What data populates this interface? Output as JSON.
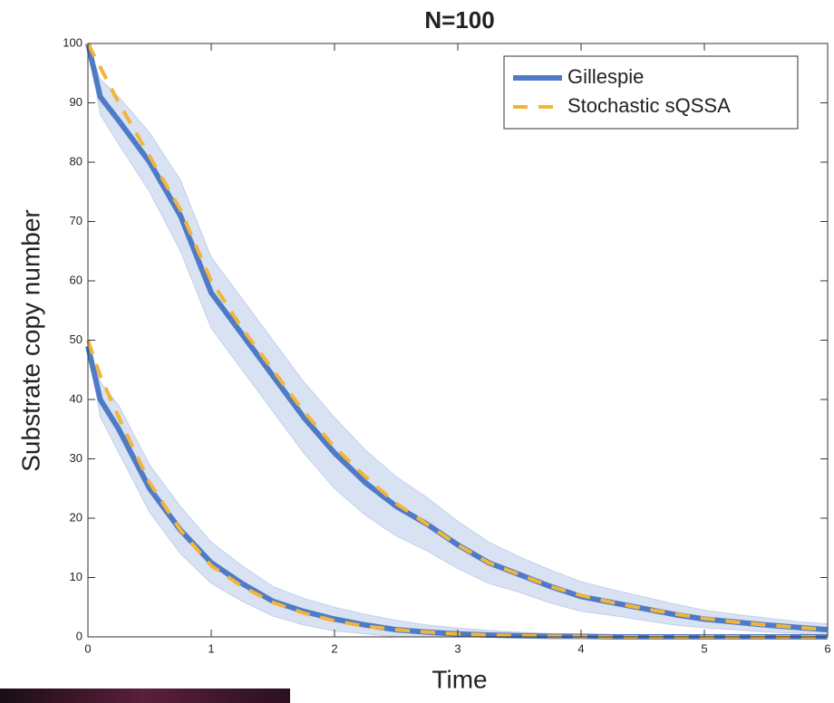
{
  "chart_data": {
    "type": "line",
    "title": "N=100",
    "x_label": "Time",
    "y_label": "Substrate copy number",
    "x": [
      0,
      0.1,
      0.25,
      0.5,
      0.75,
      1,
      1.25,
      1.5,
      1.75,
      2,
      2.25,
      2.5,
      2.75,
      3,
      3.25,
      3.5,
      3.75,
      4,
      4.25,
      4.5,
      4.75,
      5,
      5.25,
      5.5,
      5.75,
      6
    ],
    "xlim": [
      0,
      6
    ],
    "xticks": [
      0,
      1,
      2,
      3,
      4,
      5,
      6
    ],
    "ylim": [
      0,
      100
    ],
    "yticks": [
      0,
      10,
      20,
      30,
      40,
      50,
      60,
      70,
      80,
      90,
      100
    ],
    "grid": false,
    "legend": "upper right",
    "series": [
      {
        "name": "Gillespie",
        "color": "#4f7bc6",
        "style": "solid",
        "values": [
          [
            100,
            91,
            87,
            80,
            71,
            58,
            51,
            44,
            37,
            31,
            26,
            22,
            19,
            15.5,
            12.5,
            10.5,
            8.5,
            6.8,
            5.8,
            4.8,
            3.8,
            3,
            2.5,
            2,
            1.6,
            1.2
          ],
          [
            49,
            40,
            35,
            25,
            18,
            12.5,
            9,
            6,
            4.3,
            3,
            2,
            1.2,
            0.8,
            0.5,
            0.3,
            0.2,
            0.1,
            0.1,
            0,
            0,
            0,
            0,
            0,
            0,
            0,
            0
          ]
        ],
        "band_color": "#c8d5ee",
        "band_lower": [
          [
            100,
            88,
            83,
            75,
            65,
            52,
            45,
            38,
            31,
            25,
            20.5,
            17,
            14.5,
            11.5,
            9,
            7.5,
            5.7,
            4.3,
            3.6,
            2.8,
            2,
            1.5,
            1.2,
            0.8,
            0.6,
            0.2
          ],
          [
            49,
            37,
            31,
            21,
            14,
            9,
            6,
            3.5,
            2,
            1,
            0.5,
            0,
            0,
            0,
            0,
            0,
            0,
            0,
            0,
            0,
            0,
            0,
            0,
            0,
            0,
            0
          ]
        ],
        "band_upper": [
          [
            100,
            94,
            91,
            85,
            77,
            64,
            57,
            50,
            43,
            37,
            31.5,
            27,
            23.5,
            19.5,
            16,
            13.5,
            11.3,
            9.3,
            8,
            6.8,
            5.6,
            4.5,
            3.8,
            3.2,
            2.6,
            2.2
          ],
          [
            49,
            43,
            39,
            29,
            22,
            16,
            12,
            8.5,
            6.5,
            5,
            3.8,
            2.8,
            2,
            1.5,
            1.1,
            0.8,
            0.6,
            0.5,
            0.4,
            0.3,
            0.2,
            0.2,
            0.1,
            0.1,
            0.1,
            0.1
          ]
        ]
      },
      {
        "name": "Stochastic sQSSA",
        "color": "#f2b53a",
        "style": "dashed",
        "values": [
          [
            100,
            96,
            90,
            81,
            72,
            60,
            52,
            45,
            38,
            32,
            27,
            22.5,
            19,
            15.5,
            12.5,
            10.5,
            8.5,
            7,
            5.8,
            4.8,
            3.9,
            3.1,
            2.5,
            2,
            1.6,
            1.2
          ],
          [
            50,
            44,
            37,
            26,
            18,
            12,
            8.5,
            5.8,
            4,
            2.7,
            1.8,
            1.2,
            0.8,
            0.5,
            0.3,
            0.2,
            0.1,
            0.1,
            0,
            0,
            0,
            0,
            0,
            0,
            0,
            0
          ]
        ]
      }
    ]
  }
}
